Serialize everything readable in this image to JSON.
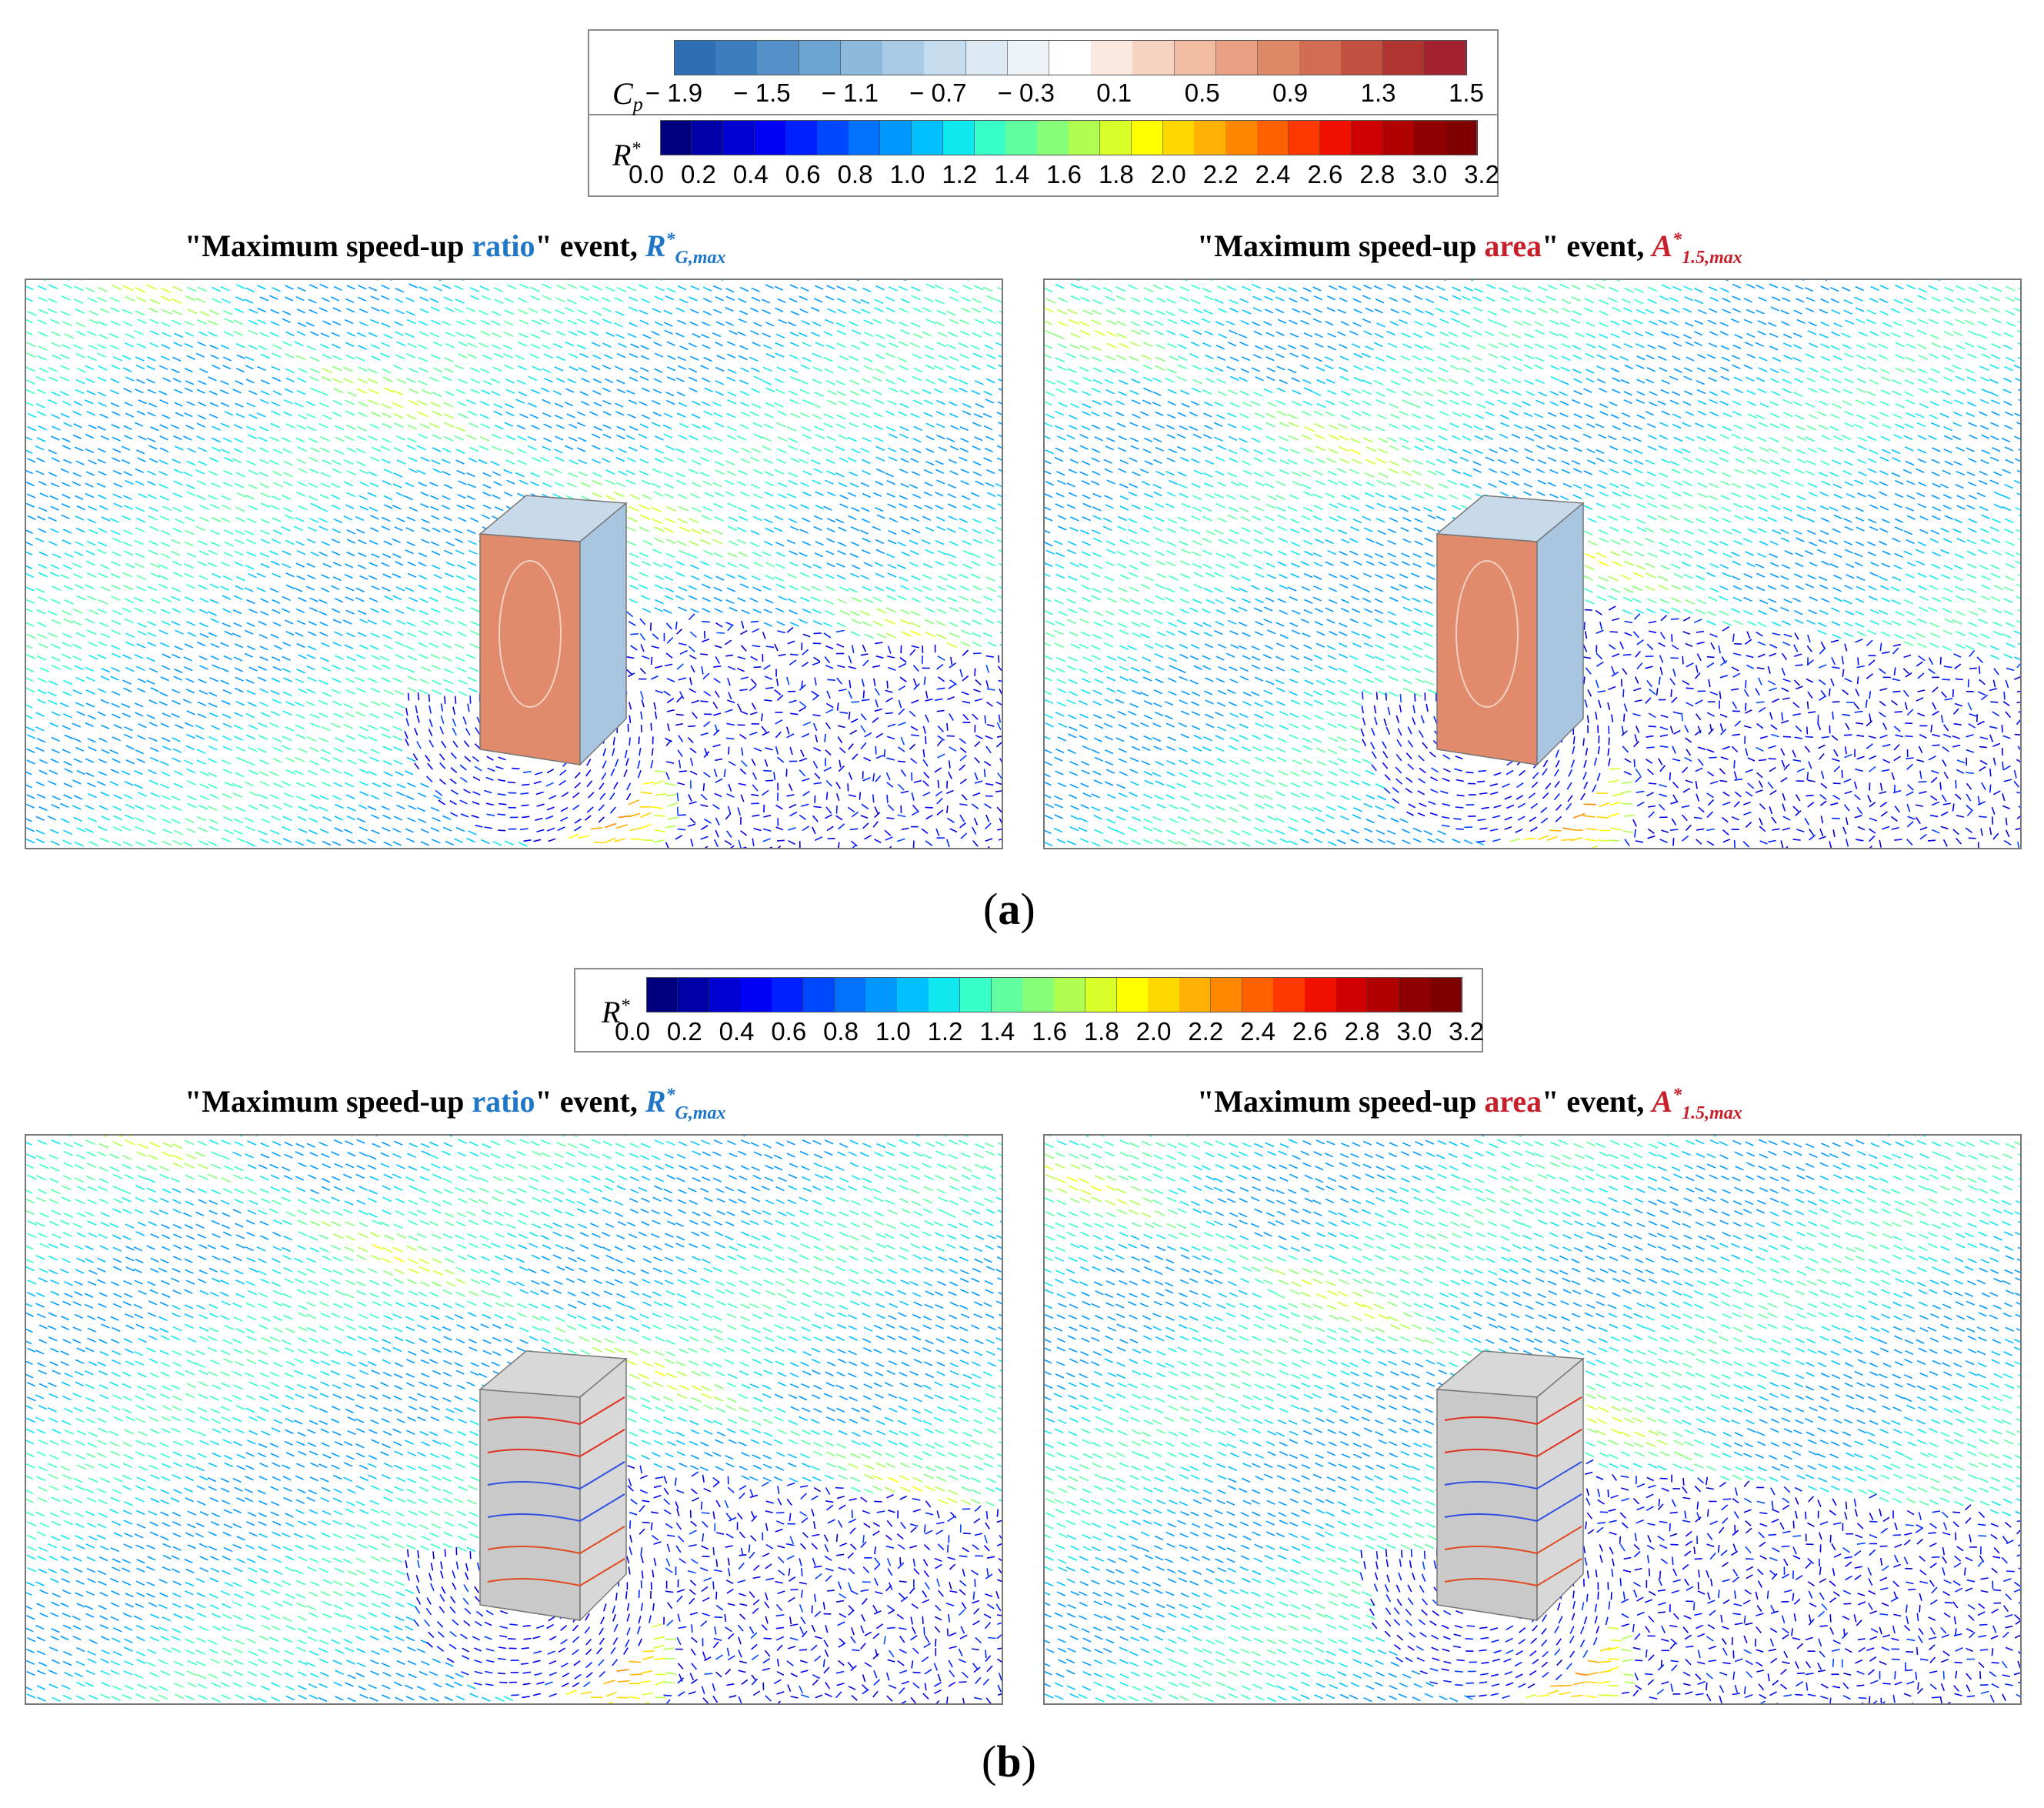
{
  "legend_a": {
    "cp_symbol": "C",
    "cp_sub": "p",
    "cp_ticks": [
      "− 1.9",
      "− 1.5",
      "− 1.1",
      "− 0.7",
      "− 0.3",
      "0.1",
      "0.5",
      "0.9",
      "1.3",
      "1.5"
    ],
    "cp_colors": [
      "#2d6fb4",
      "#3b7dbd",
      "#5391c8",
      "#6ea4d2",
      "#8cb8dc",
      "#a9cbe5",
      "#c5ddee",
      "#dde9f3",
      "#eef3f8",
      "#ffffff",
      "#fbe9df",
      "#f6d3c0",
      "#f0bba0",
      "#e8a283",
      "#de8867",
      "#d16d52",
      "#c2513f",
      "#b03531",
      "#a2222f"
    ],
    "r_symbol": "R",
    "r_sup": "*",
    "r_ticks": [
      "0.0",
      "0.2",
      "0.4",
      "0.6",
      "0.8",
      "1.0",
      "1.2",
      "1.4",
      "1.6",
      "1.8",
      "2.0",
      "2.2",
      "2.4",
      "2.6",
      "2.8",
      "3.0",
      "3.2"
    ]
  },
  "legend_b": {
    "r_symbol": "R",
    "r_sup": "*",
    "r_ticks": [
      "0.0",
      "0.2",
      "0.4",
      "0.6",
      "0.8",
      "1.0",
      "1.2",
      "1.4",
      "1.6",
      "1.8",
      "2.0",
      "2.2",
      "2.4",
      "2.6",
      "2.8",
      "3.0",
      "3.2"
    ]
  },
  "r_colors": [
    "#00007f",
    "#0000a8",
    "#0000d0",
    "#0000f5",
    "#0020ff",
    "#0048ff",
    "#0070ff",
    "#0098ff",
    "#00c0ff",
    "#10e8f0",
    "#38ffc8",
    "#60ffa0",
    "#88ff78",
    "#b0ff50",
    "#d8ff28",
    "#ffff00",
    "#ffd800",
    "#ffb000",
    "#ff8800",
    "#ff6000",
    "#ff3800",
    "#f01000",
    "#d00000",
    "#b00000",
    "#900000",
    "#7f0000"
  ],
  "titles": {
    "left_prefix": "\"Maximum speed-up ",
    "left_word": "ratio",
    "left_suffix": "\" event, ",
    "left_sym": "R",
    "left_sup": "*",
    "left_sub": "G,max",
    "right_prefix": "\"Maximum speed-up ",
    "right_word": "area",
    "right_suffix": "\" event, ",
    "right_sym": "A",
    "right_sup": "*",
    "right_sub": "1.5,max"
  },
  "labels": {
    "a": "a",
    "b": "b"
  },
  "building_colors": {
    "windward": "#e28a6c",
    "side": "#a8c6e0",
    "top": "#c8daea",
    "grey_face": "#c9c9c9",
    "grey_side": "#d8d8d8"
  }
}
